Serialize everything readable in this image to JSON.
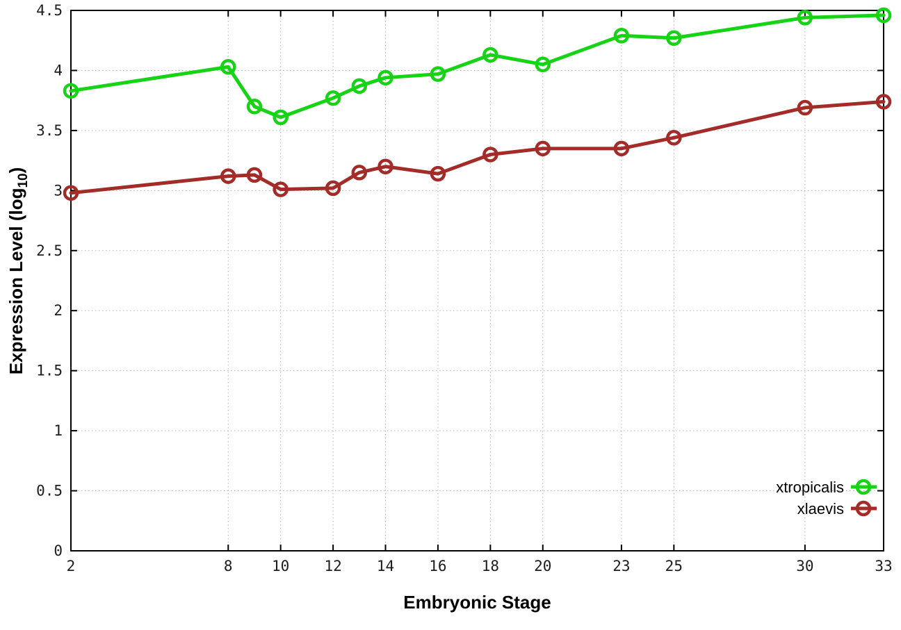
{
  "figure": {
    "background": "#ffffff"
  },
  "chart_data": {
    "type": "line",
    "title": "",
    "xlabel": "Embryonic Stage",
    "ylabel": "Expression Level (log10)",
    "ylabel_parts": {
      "main": "Expression Level (log",
      "sub": "10",
      "end": ")"
    },
    "xlim": [
      2,
      33
    ],
    "ylim": [
      0,
      4.5
    ],
    "grid": true,
    "grid_color": "#b3b3b3",
    "axis_color": "#000000",
    "x": [
      2,
      8,
      9,
      10,
      12,
      13,
      14,
      16,
      18,
      20,
      23,
      25,
      30,
      33
    ],
    "xtick_values": [
      2,
      8,
      10,
      12,
      14,
      16,
      18,
      20,
      23,
      25,
      30,
      33
    ],
    "xtick_labels": [
      "2",
      "8",
      "10",
      "12",
      "14",
      "16",
      "18",
      "20",
      "23",
      "25",
      "30",
      "33"
    ],
    "ytick_values": [
      0,
      0.5,
      1,
      1.5,
      2,
      2.5,
      3,
      3.5,
      4,
      4.5
    ],
    "ytick_labels": [
      "0",
      "0.5",
      "1",
      "1.5",
      "2",
      "2.5",
      "3",
      "3.5",
      "4",
      "4.5"
    ],
    "legend_position": "bottom-right",
    "series": [
      {
        "name": "xtropicalis",
        "color": "#16d316",
        "marker": "open-circle",
        "values": [
          3.83,
          4.03,
          3.7,
          3.61,
          3.77,
          3.87,
          3.94,
          3.97,
          4.13,
          4.05,
          4.29,
          4.27,
          4.44,
          4.46
        ]
      },
      {
        "name": "xlaevis",
        "color": "#a32c28",
        "marker": "open-circle",
        "values": [
          2.98,
          3.12,
          3.13,
          3.01,
          3.02,
          3.15,
          3.2,
          3.14,
          3.3,
          3.35,
          3.35,
          3.44,
          3.69,
          3.74
        ]
      }
    ]
  }
}
